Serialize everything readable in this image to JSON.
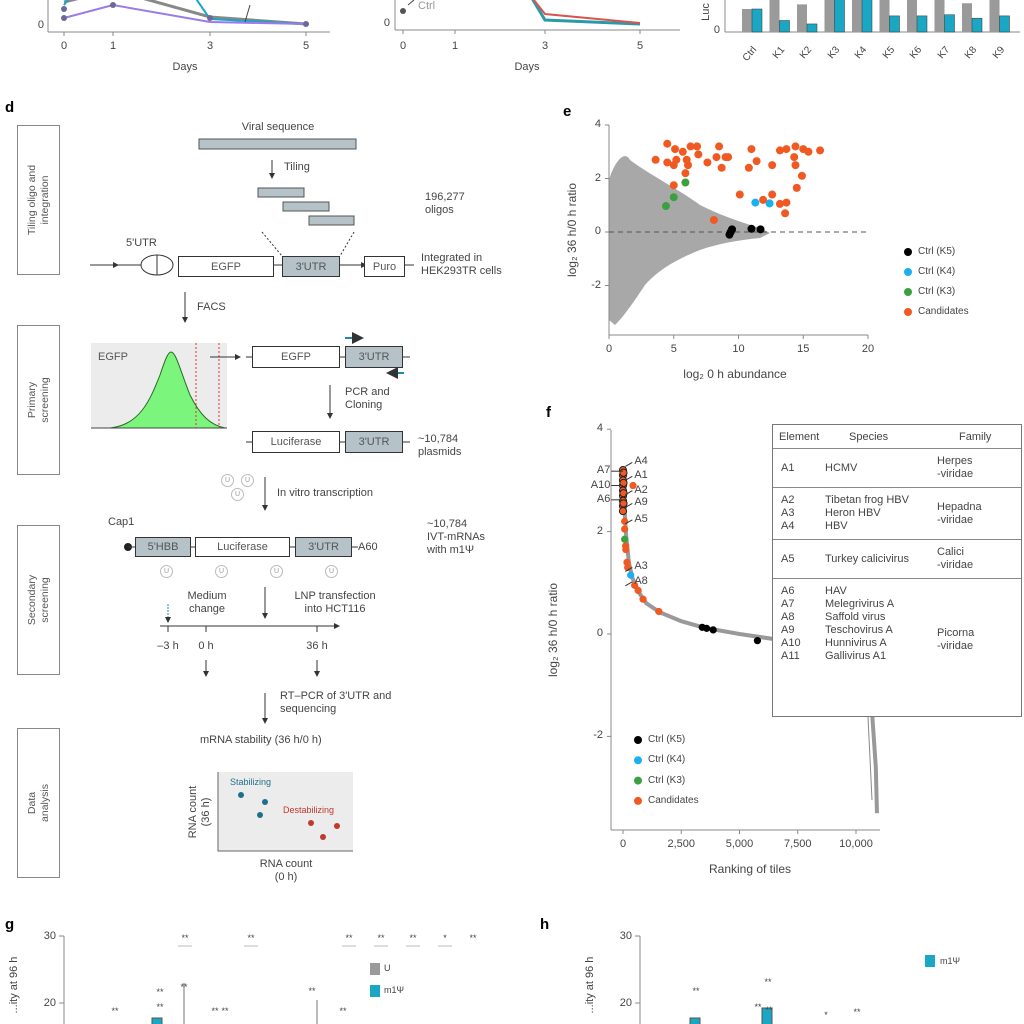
{
  "panel_labels": {
    "d": "d",
    "e": "e",
    "f": "f",
    "g": "g",
    "h": "h"
  },
  "top": {
    "a": {
      "zero": "0",
      "ticks": [
        "0",
        "1",
        "3",
        "5"
      ],
      "xlabel": "Days"
    },
    "b": {
      "zero": "0",
      "ticks": [
        "0",
        "1",
        "3",
        "5"
      ],
      "xlabel": "Days",
      "ctrl_label": "Ctrl"
    },
    "c": {
      "zero": "0",
      "ylabel": "Luc",
      "categories": [
        "Ctrl",
        "K1",
        "K2",
        "K3",
        "K4",
        "K5",
        "K6",
        "K7",
        "K8",
        "K9"
      ],
      "gray_values": [
        1.0,
        1.6,
        1.2,
        1.6,
        1.6,
        1.6,
        1.6,
        1.6,
        1.25,
        1.6
      ],
      "teal_values": [
        1.0,
        0.5,
        0.35,
        1.6,
        1.6,
        0.7,
        0.7,
        0.75,
        0.6,
        0.7
      ],
      "colors": {
        "gray": "#9a9a9a",
        "teal": "#1aa7c4"
      }
    }
  },
  "d": {
    "side_labels": [
      "Tiling oligo and\nintegration",
      "Primary\nscreening",
      "Secondary\nscreening",
      "Data\nanalysis"
    ],
    "viral_sequence": "Viral sequence",
    "tiling": "Tiling",
    "oligos": "196,277\noligos",
    "utr5": "5'UTR",
    "egfp": "EGFP",
    "utr3": "3'UTR",
    "puro": "Puro",
    "integrated": "Integrated in\nHEK293TR cells",
    "facs": "FACS",
    "hist_label": "EGFP",
    "pcr": "PCR and\nCloning",
    "luciferase": "Luciferase",
    "plasmids": "~10,784\nplasmids",
    "ivt": "In vitro transcription",
    "u_glyph": "U",
    "cap1": "Cap1",
    "hbb": "5'HBB",
    "a60": "A60",
    "ivt_mrnas": "~10,784\nIVT-mRNAs\nwith m1Ψ",
    "medium_change": "Medium\nchange",
    "lnp": "LNP transfection\ninto HCT116",
    "timepoints": [
      "–3 h",
      "0 h",
      "36 h"
    ],
    "rtpcr": "RT–PCR of 3'UTR and\nsequencing",
    "stability": "mRNA stability (36 h/0 h)",
    "stabilizing": "Stabilizing",
    "destabilizing": "Destabilizing",
    "rna_y": "RNA count\n(36 h)",
    "rna_x": "RNA count\n(0 h)",
    "colors": {
      "stabilizing": "#1f6f8b",
      "destabilizing": "#c0392b",
      "histogram": "#7cf57c",
      "utr_box": "#b5c3c9"
    }
  },
  "chart_data": [
    {
      "panel": "e",
      "type": "scatter",
      "xlabel": "log₂ 0 h abundance",
      "ylabel": "log₂ 36 h/0 h ratio",
      "xlim": [
        0,
        20
      ],
      "ylim": [
        -3.8,
        4
      ],
      "xticks": [
        "0",
        "5",
        "10",
        "15",
        "20"
      ],
      "yticks": [
        "4",
        "2",
        "0",
        "-2"
      ],
      "reference_line": {
        "y": 0,
        "style": "dashed"
      },
      "legend_position": "right",
      "background_cloud_color": "#a8a8a8",
      "series": [
        {
          "name": "Ctrl (K5)",
          "color": "#000000",
          "points": [
            [
              9.4,
              0.0
            ],
            [
              9.5,
              0.1
            ],
            [
              9.3,
              -0.1
            ],
            [
              11.0,
              0.12
            ],
            [
              11.7,
              0.1
            ]
          ]
        },
        {
          "name": "Ctrl (K4)",
          "color": "#1ab0f0",
          "points": [
            [
              11.3,
              1.1
            ],
            [
              12.4,
              1.07
            ]
          ]
        },
        {
          "name": "Ctrl (K3)",
          "color": "#3aa040",
          "points": [
            [
              4.4,
              0.97
            ],
            [
              5.0,
              1.3
            ],
            [
              5.9,
              1.85
            ]
          ]
        },
        {
          "name": "Candidates",
          "color": "#f05a22",
          "points": [
            [
              4.5,
              3.3
            ],
            [
              3.6,
              2.7
            ],
            [
              4.5,
              2.6
            ],
            [
              5.1,
              3.1
            ],
            [
              5.2,
              2.7
            ],
            [
              5.0,
              2.5
            ],
            [
              5.7,
              3.0
            ],
            [
              6.0,
              2.7
            ],
            [
              6.3,
              3.2
            ],
            [
              6.8,
              3.2
            ],
            [
              6.9,
              2.9
            ],
            [
              6.1,
              2.5
            ],
            [
              7.6,
              2.6
            ],
            [
              5.9,
              2.2
            ],
            [
              5.0,
              1.75
            ],
            [
              8.5,
              3.2
            ],
            [
              8.3,
              2.8
            ],
            [
              9.0,
              2.8
            ],
            [
              8.7,
              2.4
            ],
            [
              9.2,
              2.8
            ],
            [
              11.0,
              3.1
            ],
            [
              10.8,
              2.4
            ],
            [
              11.4,
              2.65
            ],
            [
              10.1,
              1.4
            ],
            [
              12.6,
              2.5
            ],
            [
              12.6,
              1.4
            ],
            [
              11.9,
              1.2
            ],
            [
              13.2,
              3.05
            ],
            [
              13.7,
              3.1
            ],
            [
              14.4,
              3.2
            ],
            [
              15.0,
              3.1
            ],
            [
              15.4,
              3.0
            ],
            [
              16.3,
              3.05
            ],
            [
              14.3,
              2.8
            ],
            [
              14.4,
              2.5
            ],
            [
              14.9,
              2.1
            ],
            [
              14.5,
              1.65
            ],
            [
              13.2,
              1.05
            ],
            [
              13.6,
              0.7
            ],
            [
              13.7,
              1.1
            ],
            [
              8.1,
              0.45
            ]
          ]
        }
      ]
    },
    {
      "panel": "f",
      "type": "scatter",
      "xlabel": "Ranking of tiles",
      "ylabel": "log₂ 36 h/0 h ratio",
      "xlim": [
        -500,
        11000
      ],
      "ylim": [
        -3.8,
        4
      ],
      "xticks": [
        "0",
        "2,500",
        "5,000",
        "7,500",
        "10,000"
      ],
      "yticks": [
        "4",
        "2",
        "0",
        "-2"
      ],
      "legend_position": "bottom-left",
      "curve": [
        [
          0,
          3.2
        ],
        [
          50,
          2.6
        ],
        [
          120,
          2.0
        ],
        [
          250,
          1.4
        ],
        [
          400,
          1.1
        ],
        [
          700,
          0.8
        ],
        [
          1000,
          0.6
        ],
        [
          1600,
          0.42
        ],
        [
          2500,
          0.25
        ],
        [
          3500,
          0.12
        ],
        [
          5000,
          0.0
        ],
        [
          6500,
          -0.1
        ],
        [
          7500,
          -0.2
        ],
        [
          9000,
          -0.35
        ],
        [
          10000,
          -0.6
        ],
        [
          10500,
          -1.0
        ],
        [
          10700,
          -1.6
        ],
        [
          10850,
          -2.6
        ],
        [
          10900,
          -3.5
        ]
      ],
      "series": [
        {
          "name": "Ctrl (K5)",
          "color": "#000000",
          "points": [
            [
              3400,
              0.13
            ],
            [
              3590,
              0.11
            ],
            [
              3870,
              0.08
            ],
            [
              5770,
              -0.13
            ]
          ]
        },
        {
          "name": "Ctrl (K4)",
          "color": "#1ab0f0",
          "points": [
            [
              330,
              1.15
            ]
          ]
        },
        {
          "name": "Ctrl (K3)",
          "color": "#3aa040",
          "points": [
            [
              70,
              1.85
            ]
          ]
        },
        {
          "name": "Candidates",
          "color": "#f05a22",
          "points": [
            [
              0,
              3.2
            ],
            [
              0,
              3.1
            ],
            [
              0,
              3.0
            ],
            [
              0,
              2.9
            ],
            [
              0,
              2.8
            ],
            [
              0,
              2.7
            ],
            [
              0,
              2.6
            ],
            [
              0,
              2.5
            ],
            [
              0,
              2.4
            ],
            [
              20,
              3.15
            ],
            [
              20,
              2.95
            ],
            [
              20,
              2.75
            ],
            [
              20,
              2.55
            ],
            [
              430,
              2.9
            ],
            [
              70,
              2.2
            ],
            [
              70,
              2.05
            ],
            [
              110,
              1.72
            ],
            [
              120,
              1.65
            ],
            [
              170,
              1.4
            ],
            [
              200,
              1.3
            ],
            [
              500,
              0.95
            ],
            [
              650,
              0.85
            ],
            [
              860,
              0.68
            ],
            [
              1535,
              0.44
            ]
          ]
        }
      ],
      "annotations": [
        {
          "label": "A4",
          "side": "right",
          "y": 3.35
        },
        {
          "label": "A1",
          "side": "right",
          "y": 3.08
        },
        {
          "label": "A2",
          "side": "right",
          "y": 2.8
        },
        {
          "label": "A9",
          "side": "right",
          "y": 2.55
        },
        {
          "label": "A5",
          "side": "right",
          "y": 2.23
        },
        {
          "label": "A7",
          "side": "left",
          "y": 3.18
        },
        {
          "label": "A10",
          "side": "left",
          "y": 2.9
        },
        {
          "label": "A6",
          "side": "left",
          "y": 2.62
        },
        {
          "label": "A3",
          "side": "right",
          "y": 1.3
        },
        {
          "label": "A8",
          "side": "right",
          "y": 1.02
        }
      ]
    }
  ],
  "f_table": {
    "headers": [
      "Element",
      "Species",
      "Family"
    ],
    "groups": [
      {
        "elements": [
          "A1"
        ],
        "species": [
          "HCMV"
        ],
        "family": "Herpes\n-viridae"
      },
      {
        "elements": [
          "A2",
          "A3",
          "A4"
        ],
        "species": [
          "Tibetan frog HBV",
          "Heron HBV",
          "HBV"
        ],
        "family": "Hepadna\n-viridae"
      },
      {
        "elements": [
          "A5"
        ],
        "species": [
          "Turkey calicivirus"
        ],
        "family": "Calici\n-viridae"
      },
      {
        "elements": [
          "A6",
          "A7",
          "A8",
          "A9",
          "A10",
          "A11"
        ],
        "species": [
          "HAV",
          "Melegrivirus A",
          "Saffold virus",
          "Teschovirus A",
          "Hunnivirus A",
          "Gallivirus A1"
        ],
        "family": "Picorna\n-viridae"
      }
    ]
  },
  "g": {
    "yticks": [
      "30",
      "20"
    ],
    "ylabel": "...ity at 96 h",
    "legend": [
      {
        "label": "U",
        "color": "#9a9a9a"
      },
      {
        "label": "m1Ψ",
        "color": "#1aa7c4"
      }
    ],
    "sig_top": [
      "**",
      "**",
      "**",
      "**",
      "**",
      "*",
      "**"
    ],
    "sig_mid": [
      "**",
      "**",
      "**",
      "**",
      "**",
      "**",
      "**",
      "**"
    ]
  },
  "h": {
    "yticks": [
      "30",
      "20"
    ],
    "ylabel": "...ity at 96 h",
    "legend": [
      {
        "label": "m1Ψ",
        "color": "#1aa7c4"
      }
    ],
    "sig": [
      "**",
      "**",
      "**",
      "*",
      "**",
      "**"
    ]
  }
}
